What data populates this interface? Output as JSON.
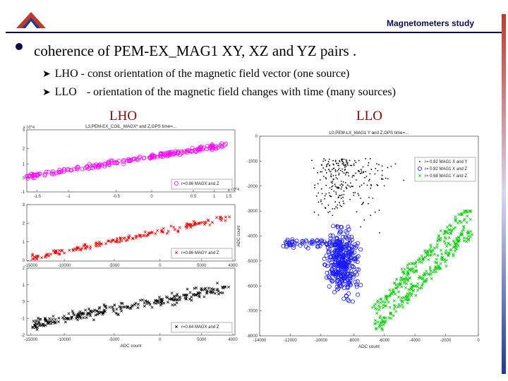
{
  "header": {
    "title": "Magnetometers study",
    "colors": {
      "accent": "#0a0a50",
      "logo_red": "#c0392b",
      "logo_blue": "#1f3a93"
    }
  },
  "main": {
    "bullet_text": "coherence of PEM-EX_MAG1 XY, XZ and YZ pairs .",
    "items": [
      {
        "label": "LHO",
        "text": "- const orientation of the magnetic field vector (one source)"
      },
      {
        "label": "LLO",
        "text": "- orientation of the magnetic field changes with time (many sources)"
      }
    ],
    "col_titles": [
      "LHO",
      "LLO"
    ]
  },
  "chart_data": [
    {
      "type": "scatter",
      "title": "L3,PEM-EX_COIL_MAGX* and Z,GPS time=...",
      "x_exponent": "x 10^4",
      "y_exponent": "x 10^4",
      "xlim": [
        -1.5,
        1.5
      ],
      "ylim": [
        -1,
        3
      ],
      "xticks": [
        "-1.5",
        "-1",
        "-0.5",
        "0",
        "0.5",
        "1",
        "1.5"
      ],
      "yticks": [
        "3",
        "2",
        "1",
        "0",
        "-1"
      ],
      "series": [
        {
          "name": "r=0.86 MAGX and Z",
          "color": "#ff00ff",
          "marker": "circle",
          "x_range": [
            -1.5,
            1.4
          ],
          "slope": 0.7,
          "intercept": 1.05
        }
      ],
      "legend": "bottom-right"
    },
    {
      "type": "scatter",
      "xlim": [
        -15000,
        4000
      ],
      "ylim": [
        0,
        3
      ],
      "xticks": [
        "-15000",
        "-10000",
        "-5000",
        "0",
        "5000",
        "4000"
      ],
      "yticks": [
        "3",
        "2",
        "1",
        "0"
      ],
      "series": [
        {
          "name": "r=0.86 MAGY and Z",
          "color": "#ee0000",
          "marker": "x",
          "x_range": [
            -14500,
            3500
          ],
          "slope": 0.00012,
          "intercept": 1.9
        }
      ],
      "legend": "bottom-right"
    },
    {
      "type": "scatter",
      "xlim": [
        -15000,
        4000
      ],
      "ylim": [
        -2,
        2
      ],
      "xticks": [
        "-15000",
        "-10000",
        "-5000",
        "0",
        "5000",
        "4000"
      ],
      "yticks": [
        "2",
        "1",
        "0",
        "-1",
        "-2"
      ],
      "xlabel": "ADC count",
      "series": [
        {
          "name": "r=0.84 MAGX and Z",
          "color": "#000000",
          "marker": "x",
          "x_range": [
            -14500,
            3500
          ],
          "slope": 0.00012,
          "intercept": 0.4
        }
      ],
      "legend": "bottom-right"
    },
    {
      "type": "scatter",
      "title": "L0,PEM-LX_MAG1 Y and Z,GPS time=...",
      "xlim": [
        -14000,
        0
      ],
      "ylim": [
        -8000,
        0
      ],
      "xticks": [
        "-14000",
        "-12000",
        "-10000",
        "-8000",
        "-6000",
        "-4000",
        "-2000",
        "0"
      ],
      "yticks": [
        "0",
        "-1000",
        "-2000",
        "-3000",
        "-4000",
        "-5000",
        "-6000",
        "-7000",
        "-8000"
      ],
      "xlabel": "ADC count",
      "ylabel": "ADC count",
      "series": [
        {
          "name": "r= 0.82 MAG1 X and Y",
          "color": "#000000",
          "marker": "dot"
        },
        {
          "name": "r= 0.82 MAG1 X and Z",
          "color": "#1a1aff",
          "marker": "circle"
        },
        {
          "name": "r= 0.68 MAG1 Y and Z",
          "color": "#00cc00",
          "marker": "x"
        }
      ],
      "legend": "top-right"
    }
  ]
}
